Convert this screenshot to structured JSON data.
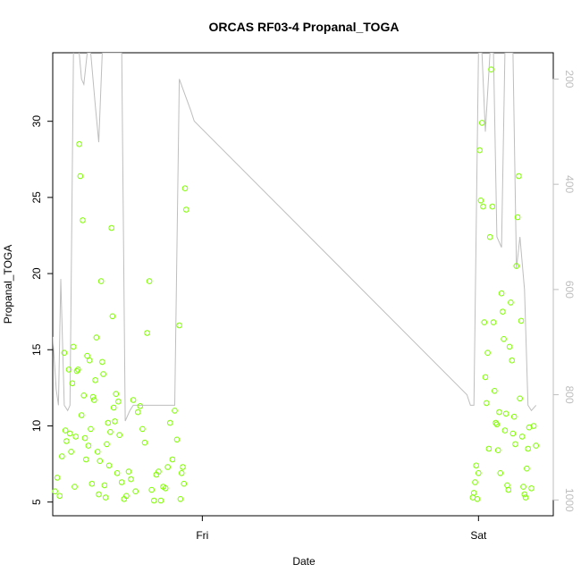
{
  "chart_data": {
    "type": "scatter",
    "title": "ORCAS RF03-4 Propanal_TOGA",
    "xlabel": "Date",
    "ylabel": "Propanal_TOGA",
    "x_ticks": [
      {
        "label": "Fri",
        "value": 24.0
      },
      {
        "label": "Sat",
        "value": 48.0
      }
    ],
    "xlim": [
      11.0,
      54.5
    ],
    "ylim": [
      4.1,
      34.5
    ],
    "y_ticks": [
      5,
      10,
      15,
      20,
      25,
      30
    ],
    "secondary_axis": {
      "color": "#bebebe",
      "reversed": true,
      "range": [
        1030,
        150
      ],
      "ticks": [
        200,
        400,
        600,
        800,
        1000
      ]
    },
    "colors": {
      "points": "#7fff00",
      "line": "#bebebe"
    },
    "series": [
      {
        "type": "points",
        "x": [
          11.2,
          11.4,
          11.6,
          11.8,
          12.0,
          12.1,
          12.2,
          12.4,
          12.5,
          12.6,
          12.7,
          12.8,
          12.9,
          13.0,
          13.1,
          13.2,
          13.3,
          13.4,
          13.5,
          13.6,
          13.7,
          13.8,
          13.9,
          14.0,
          14.1,
          14.2,
          14.3,
          14.4,
          14.5,
          14.6,
          14.7,
          14.8,
          14.9,
          15.0,
          15.1,
          15.2,
          15.3,
          15.4,
          15.5,
          15.6,
          15.7,
          15.8,
          15.9,
          16.0,
          16.1,
          16.2,
          16.3,
          16.4,
          16.5,
          16.6,
          16.7,
          16.8,
          17.0,
          17.2,
          17.4,
          17.6,
          17.8,
          18.0,
          18.2,
          18.4,
          18.6,
          18.8,
          19.0,
          19.2,
          19.4,
          19.6,
          19.8,
          20.0,
          20.2,
          20.4,
          20.6,
          20.8,
          21.0,
          21.2,
          21.4,
          21.6,
          21.8,
          22.0,
          22.1,
          22.2,
          22.3,
          22.4,
          22.5,
          22.6
        ],
        "y": [
          5.7,
          6.6,
          5.4,
          8.0,
          14.8,
          9.7,
          9.0,
          13.7,
          9.5,
          8.3,
          12.8,
          15.2,
          6.0,
          9.3,
          13.6,
          13.7,
          28.5,
          26.4,
          10.7,
          23.5,
          12.0,
          9.2,
          7.8,
          14.6,
          8.7,
          14.3,
          9.8,
          6.2,
          11.9,
          11.7,
          13.0,
          15.8,
          8.3,
          5.5,
          7.7,
          19.5,
          14.2,
          13.4,
          6.1,
          5.3,
          8.8,
          10.2,
          7.4,
          9.6,
          23.0,
          17.2,
          11.2,
          10.3,
          12.1,
          6.9,
          11.6,
          9.4,
          6.3,
          5.2,
          5.4,
          7.0,
          6.5,
          11.7,
          5.7,
          10.9,
          11.3,
          9.8,
          8.9,
          16.1,
          19.5,
          5.8,
          5.1,
          6.8,
          7.0,
          5.1,
          6.0,
          5.9,
          7.3,
          10.2,
          7.8,
          11.0,
          9.1,
          16.6,
          5.2,
          6.9,
          7.3,
          6.2,
          25.6,
          24.2
        ],
        "x2": [
          47.5,
          47.6,
          47.7,
          47.8,
          47.9,
          48.0,
          48.1,
          48.2,
          48.3,
          48.4,
          48.5,
          48.6,
          48.7,
          48.8,
          48.9,
          49.0,
          49.1,
          49.2,
          49.3,
          49.4,
          49.5,
          49.6,
          49.7,
          49.8,
          49.9,
          50.0,
          50.1,
          50.2,
          50.3,
          50.4,
          50.5,
          50.6,
          50.7,
          50.8,
          50.9,
          51.0,
          51.1,
          51.2,
          51.3,
          51.4,
          51.5,
          51.6,
          51.7,
          51.8,
          51.9,
          52.0,
          52.1,
          52.2,
          52.3,
          52.4,
          52.6,
          52.8,
          53.0
        ],
        "y2": [
          5.3,
          5.6,
          6.3,
          7.4,
          5.2,
          6.9,
          28.1,
          24.8,
          29.9,
          24.4,
          16.8,
          13.2,
          11.5,
          14.8,
          8.5,
          22.4,
          33.4,
          24.4,
          16.8,
          12.3,
          10.2,
          10.1,
          8.4,
          10.9,
          6.9,
          18.7,
          17.5,
          15.7,
          9.7,
          10.8,
          6.1,
          5.8,
          15.2,
          18.1,
          14.3,
          9.5,
          10.6,
          8.8,
          20.5,
          23.7,
          26.4,
          11.8,
          16.9,
          9.3,
          6.0,
          5.5,
          5.3,
          7.2,
          8.5,
          9.9,
          5.9,
          10.0,
          8.7
        ]
      },
      {
        "type": "line",
        "axis": "secondary",
        "x": [
          11.0,
          11.3,
          11.5,
          11.7,
          12.0,
          12.3,
          12.5,
          12.8,
          13.0,
          13.3,
          13.5,
          13.7,
          14.0,
          14.3,
          14.7,
          15.0,
          15.3,
          15.5,
          15.8,
          16.0,
          16.3,
          16.7,
          17.0,
          17.3,
          17.7,
          18.0,
          18.5,
          19.0,
          19.5,
          20.0,
          20.3,
          20.6,
          21.0,
          21.3,
          21.6,
          22.0,
          22.5,
          23.0,
          23.3,
          47.0,
          47.3,
          47.6,
          48.0,
          48.3,
          48.6,
          49.0,
          49.3,
          49.6,
          50.0,
          50.3,
          50.6,
          51.0,
          51.3,
          51.6,
          52.0,
          52.3,
          52.6,
          53.0
        ],
        "y": [
          690,
          790,
          820,
          580,
          820,
          830,
          820,
          150,
          140,
          150,
          200,
          210,
          150,
          150,
          250,
          320,
          150,
          150,
          150,
          150,
          150,
          150,
          150,
          850,
          830,
          820,
          820,
          820,
          820,
          820,
          820,
          820,
          820,
          820,
          820,
          200,
          230,
          260,
          280,
          800,
          820,
          820,
          150,
          150,
          300,
          150,
          150,
          500,
          520,
          150,
          150,
          150,
          560,
          500,
          600,
          820,
          830,
          820
        ]
      }
    ]
  }
}
